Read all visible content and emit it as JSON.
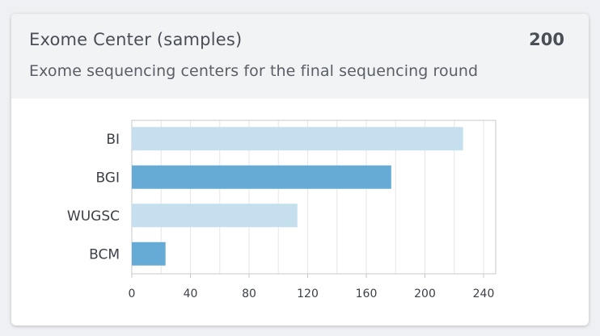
{
  "card": {
    "title": "Exome Center (samples)",
    "count": "200",
    "subtitle": "Exome sequencing centers for the final sequencing round"
  },
  "chart_data": {
    "type": "bar",
    "orientation": "horizontal",
    "categories": [
      "BI",
      "BGI",
      "WUGSC",
      "BCM"
    ],
    "values": [
      226,
      177,
      113,
      23
    ],
    "xlim": [
      0,
      240
    ],
    "xticks": [
      0,
      40,
      80,
      120,
      160,
      200,
      240
    ],
    "grid": true,
    "colors": {
      "light": "#c5dfee",
      "dark": "#65abd5",
      "grid": "#e6e6e6",
      "axis": "#c9c9c9"
    },
    "bar_color_keys": [
      "light",
      "dark",
      "light",
      "dark"
    ]
  }
}
